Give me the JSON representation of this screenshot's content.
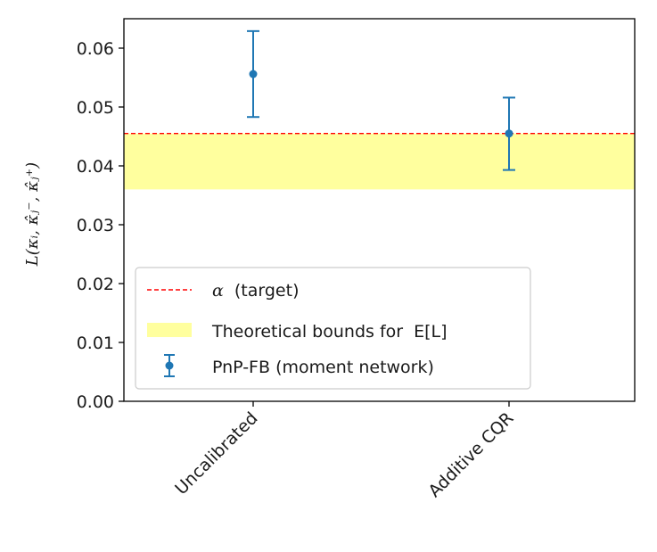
{
  "chart_data": {
    "type": "scatter",
    "categories": [
      "Uncalibrated",
      "Additive CQR"
    ],
    "series": [
      {
        "name": "PnP-FB (moment network)",
        "values": [
          0.0556,
          0.0455
        ],
        "error_low": [
          0.0483,
          0.0393
        ],
        "error_high": [
          0.0629,
          0.0516
        ],
        "color": "#1f77b4"
      }
    ],
    "target_line": {
      "label_symbol": "α",
      "label_text": "(target)",
      "value": 0.0455,
      "color": "#ff0000",
      "style": "dashed"
    },
    "bounds_band": {
      "label": "Theoretical bounds for",
      "label_math": "E[L]",
      "low": 0.036,
      "high": 0.0455,
      "color": "#ffff9e"
    },
    "ylabel": "L(κᵢ, κ̂ⱼ⁻, κ̂ⱼ⁺)",
    "ylim": [
      0.0,
      0.065
    ],
    "yticks": [
      "0.00",
      "0.01",
      "0.02",
      "0.03",
      "0.04",
      "0.05",
      "0.06"
    ],
    "ytick_values": [
      0.0,
      0.01,
      0.02,
      0.03,
      0.04,
      0.05,
      0.06
    ],
    "grid": false,
    "legend_position": "lower-left"
  }
}
